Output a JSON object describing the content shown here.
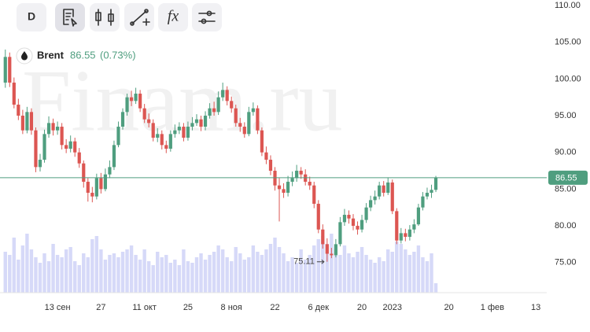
{
  "toolbar": {
    "interval": "D",
    "function": "fx"
  },
  "chart_data": {
    "type": "candlestick",
    "symbol": "Brent",
    "change_label": "(0.73%)",
    "watermark": "Finam.ru",
    "up_color": "#4f9e7f",
    "down_color": "#dc5652",
    "volume_color": "#d6d9f8",
    "last_line_color": "#4f9e7f",
    "ylim": [
      70.9,
      110.75
    ],
    "yticks": [
      {
        "value": 75,
        "label": "75.00"
      },
      {
        "value": 80,
        "label": "80.00"
      },
      {
        "value": 85,
        "label": "85.00"
      },
      {
        "value": 90,
        "label": "90.00"
      },
      {
        "value": 95,
        "label": "95.00"
      },
      {
        "value": 100,
        "label": "100.00"
      },
      {
        "value": 105,
        "label": "105.00"
      },
      {
        "value": 110,
        "label": "110.00"
      }
    ],
    "categories": [
      null,
      null,
      null,
      null,
      null,
      null,
      null,
      null,
      null,
      null,
      null,
      null,
      "13 сен",
      null,
      null,
      null,
      null,
      null,
      null,
      null,
      null,
      null,
      "27",
      null,
      null,
      null,
      null,
      null,
      null,
      null,
      null,
      null,
      "11 окт",
      null,
      null,
      null,
      null,
      null,
      null,
      null,
      null,
      null,
      "25",
      null,
      null,
      null,
      null,
      null,
      null,
      null,
      null,
      null,
      "8 ноя",
      null,
      null,
      null,
      null,
      null,
      null,
      null,
      null,
      null,
      "22",
      null,
      null,
      null,
      null,
      null,
      null,
      null,
      null,
      null,
      "6 дек",
      null,
      null,
      null,
      null,
      null,
      null,
      null,
      null,
      null,
      "20",
      null,
      null,
      null,
      null,
      null,
      null,
      "2023",
      null,
      null,
      null,
      null,
      null,
      null,
      null,
      null,
      null,
      null,
      null,
      null,
      "20",
      null,
      null,
      null,
      null,
      null,
      null,
      null,
      null,
      null,
      "1 фев",
      null,
      null,
      null,
      null,
      null,
      null,
      null,
      null,
      null,
      "13",
      null,
      null
    ],
    "open": [
      99.5,
      103.0,
      99.5,
      96.5,
      95.0,
      93.0,
      95.5,
      93.0,
      88.0,
      89.0,
      92.5,
      94.0,
      93.0,
      93.5,
      91.0,
      90.5,
      91.5,
      90.0,
      88.5,
      86.0,
      84.5,
      84.0,
      86.5,
      85.0,
      87.0,
      88.0,
      91.0,
      93.5,
      95.5,
      97.5,
      97.0,
      98.0,
      96.0,
      94.5,
      94.0,
      92.0,
      92.5,
      91.0,
      90.5,
      92.5,
      93.0,
      93.5,
      92.0,
      93.5,
      94.0,
      94.5,
      93.5,
      95.0,
      96.0,
      95.5,
      97.5,
      98.5,
      97.0,
      96.0,
      94.0,
      93.5,
      92.5,
      95.5,
      96.0,
      93.0,
      90.0,
      89.0,
      87.5,
      85.5,
      85.0,
      84.5,
      86.0,
      86.5,
      87.5,
      87.0,
      86.0,
      85.5,
      83.0,
      79.5,
      77.5,
      76.2,
      76.0,
      77.5,
      80.5,
      81.5,
      81.0,
      80.0,
      79.5,
      80.8,
      82.5,
      83.5,
      84.0,
      85.5,
      84.5,
      85.9,
      82.0,
      78.0,
      79.0,
      78.5,
      79.5,
      80.2,
      82.5,
      84.0,
      84.5,
      84.9,
      null,
      null,
      null,
      null,
      null,
      null,
      null,
      null,
      null,
      null,
      null,
      null,
      null,
      null,
      null,
      null,
      null,
      null,
      null,
      null,
      null,
      null,
      null,
      null,
      null
    ],
    "high": [
      104.0,
      103.6,
      100.2,
      97.3,
      95.8,
      96.2,
      96.0,
      93.4,
      89.8,
      93.1,
      94.9,
      94.6,
      94.2,
      94.0,
      91.8,
      92.3,
      92.0,
      90.6,
      88.9,
      86.5,
      85.3,
      87.1,
      87.2,
      87.8,
      88.9,
      91.6,
      94.2,
      96.0,
      98.0,
      98.4,
      98.8,
      98.5,
      96.6,
      95.3,
      94.5,
      93.3,
      93.0,
      91.6,
      93.0,
      93.8,
      94.1,
      94.0,
      94.2,
      94.8,
      95.2,
      95.0,
      95.6,
      96.7,
      96.9,
      98.3,
      99.5,
      99.0,
      97.6,
      96.5,
      94.7,
      94.1,
      96.2,
      96.8,
      96.4,
      93.4,
      90.8,
      89.6,
      88.0,
      86.5,
      85.8,
      86.8,
      87.4,
      88.3,
      88.0,
      87.7,
      86.7,
      86.0,
      83.5,
      80.2,
      78.3,
      77.0,
      78.2,
      81.2,
      82.3,
      82.1,
      81.6,
      80.6,
      81.5,
      83.1,
      84.1,
      84.8,
      86.0,
      86.1,
      86.6,
      86.3,
      82.4,
      79.7,
      79.6,
      80.1,
      80.9,
      83.0,
      84.6,
      85.2,
      85.6,
      86.8,
      null,
      null,
      null,
      null,
      null,
      null,
      null,
      null,
      null,
      null,
      null,
      null,
      null,
      null,
      null,
      null,
      null,
      null,
      null,
      null,
      null,
      null,
      null,
      null,
      null
    ],
    "low": [
      98.8,
      98.9,
      96.0,
      94.4,
      92.5,
      92.6,
      92.4,
      87.3,
      87.4,
      88.6,
      92.0,
      92.3,
      92.4,
      90.4,
      89.9,
      90.0,
      89.4,
      87.9,
      85.2,
      83.3,
      83.2,
      83.6,
      84.4,
      84.7,
      86.5,
      87.6,
      90.7,
      93.1,
      95.0,
      96.3,
      96.6,
      95.5,
      94.0,
      93.4,
      91.5,
      91.4,
      90.4,
      89.9,
      90.1,
      92.0,
      92.5,
      91.5,
      91.6,
      93.0,
      93.6,
      92.9,
      93.0,
      94.6,
      95.0,
      95.1,
      97.0,
      96.4,
      95.4,
      93.5,
      92.8,
      92.0,
      92.2,
      95.0,
      92.5,
      89.5,
      88.4,
      86.9,
      84.8,
      80.6,
      83.8,
      84.0,
      85.4,
      86.0,
      86.4,
      85.5,
      84.9,
      82.4,
      79.0,
      76.9,
      75.11,
      75.6,
      75.7,
      77.2,
      80.0,
      80.3,
      79.4,
      78.8,
      79.1,
      80.4,
      82.0,
      82.9,
      83.6,
      84.0,
      84.2,
      81.6,
      77.5,
      77.6,
      77.9,
      78.0,
      79.0,
      80.0,
      82.1,
      83.6,
      83.8,
      84.6,
      null,
      null,
      null,
      null,
      null,
      null,
      null,
      null,
      null,
      null,
      null,
      null,
      null,
      null,
      null,
      null,
      null,
      null,
      null,
      null,
      null,
      null,
      null,
      null,
      null
    ],
    "close": [
      103.0,
      99.5,
      96.5,
      95.0,
      93.0,
      95.5,
      93.0,
      88.0,
      89.0,
      92.5,
      94.0,
      93.0,
      93.5,
      91.0,
      90.5,
      91.5,
      90.0,
      88.5,
      86.0,
      84.5,
      84.0,
      86.5,
      85.0,
      87.0,
      88.0,
      91.0,
      93.5,
      95.5,
      97.5,
      97.0,
      98.0,
      96.0,
      94.5,
      94.0,
      92.0,
      92.5,
      91.0,
      90.5,
      92.5,
      93.0,
      93.5,
      92.0,
      93.5,
      94.0,
      94.5,
      93.5,
      95.0,
      96.0,
      95.5,
      97.5,
      98.5,
      97.0,
      96.0,
      94.0,
      93.5,
      92.5,
      95.5,
      96.0,
      93.0,
      90.0,
      89.0,
      87.5,
      85.5,
      85.0,
      84.5,
      86.0,
      86.5,
      87.5,
      87.0,
      86.0,
      85.5,
      83.0,
      79.5,
      77.5,
      76.2,
      76.0,
      77.5,
      80.5,
      81.5,
      81.0,
      80.0,
      79.5,
      80.8,
      82.5,
      83.5,
      84.0,
      85.5,
      84.5,
      85.9,
      82.0,
      78.0,
      79.0,
      78.5,
      79.5,
      80.2,
      82.5,
      84.0,
      84.5,
      84.9,
      86.55,
      null,
      null,
      null,
      null,
      null,
      null,
      null,
      null,
      null,
      null,
      null,
      null,
      null,
      null,
      null,
      null,
      null,
      null,
      null,
      null,
      null,
      null,
      null,
      null,
      null
    ],
    "volume": [
      52,
      48,
      70,
      42,
      60,
      75,
      55,
      45,
      38,
      50,
      40,
      62,
      48,
      45,
      55,
      58,
      40,
      35,
      50,
      45,
      68,
      72,
      55,
      42,
      48,
      50,
      45,
      52,
      55,
      60,
      48,
      42,
      55,
      40,
      35,
      52,
      45,
      48,
      38,
      42,
      35,
      55,
      40,
      38,
      45,
      50,
      42,
      48,
      52,
      60,
      55,
      45,
      40,
      58,
      50,
      42,
      45,
      60,
      52,
      48,
      55,
      62,
      70,
      58,
      50,
      40,
      45,
      38,
      55,
      42,
      48,
      60,
      68,
      72,
      62,
      75,
      55,
      48,
      60,
      50,
      45,
      52,
      58,
      48,
      42,
      38,
      45,
      40,
      55,
      52,
      65,
      62,
      55,
      48,
      52,
      60,
      45,
      40,
      50,
      12,
      null,
      null,
      null,
      null,
      null,
      null,
      null,
      null,
      null,
      null,
      null,
      null,
      null,
      null,
      null,
      null,
      null,
      null,
      null,
      null,
      null,
      null,
      null,
      null,
      null
    ]
  }
}
